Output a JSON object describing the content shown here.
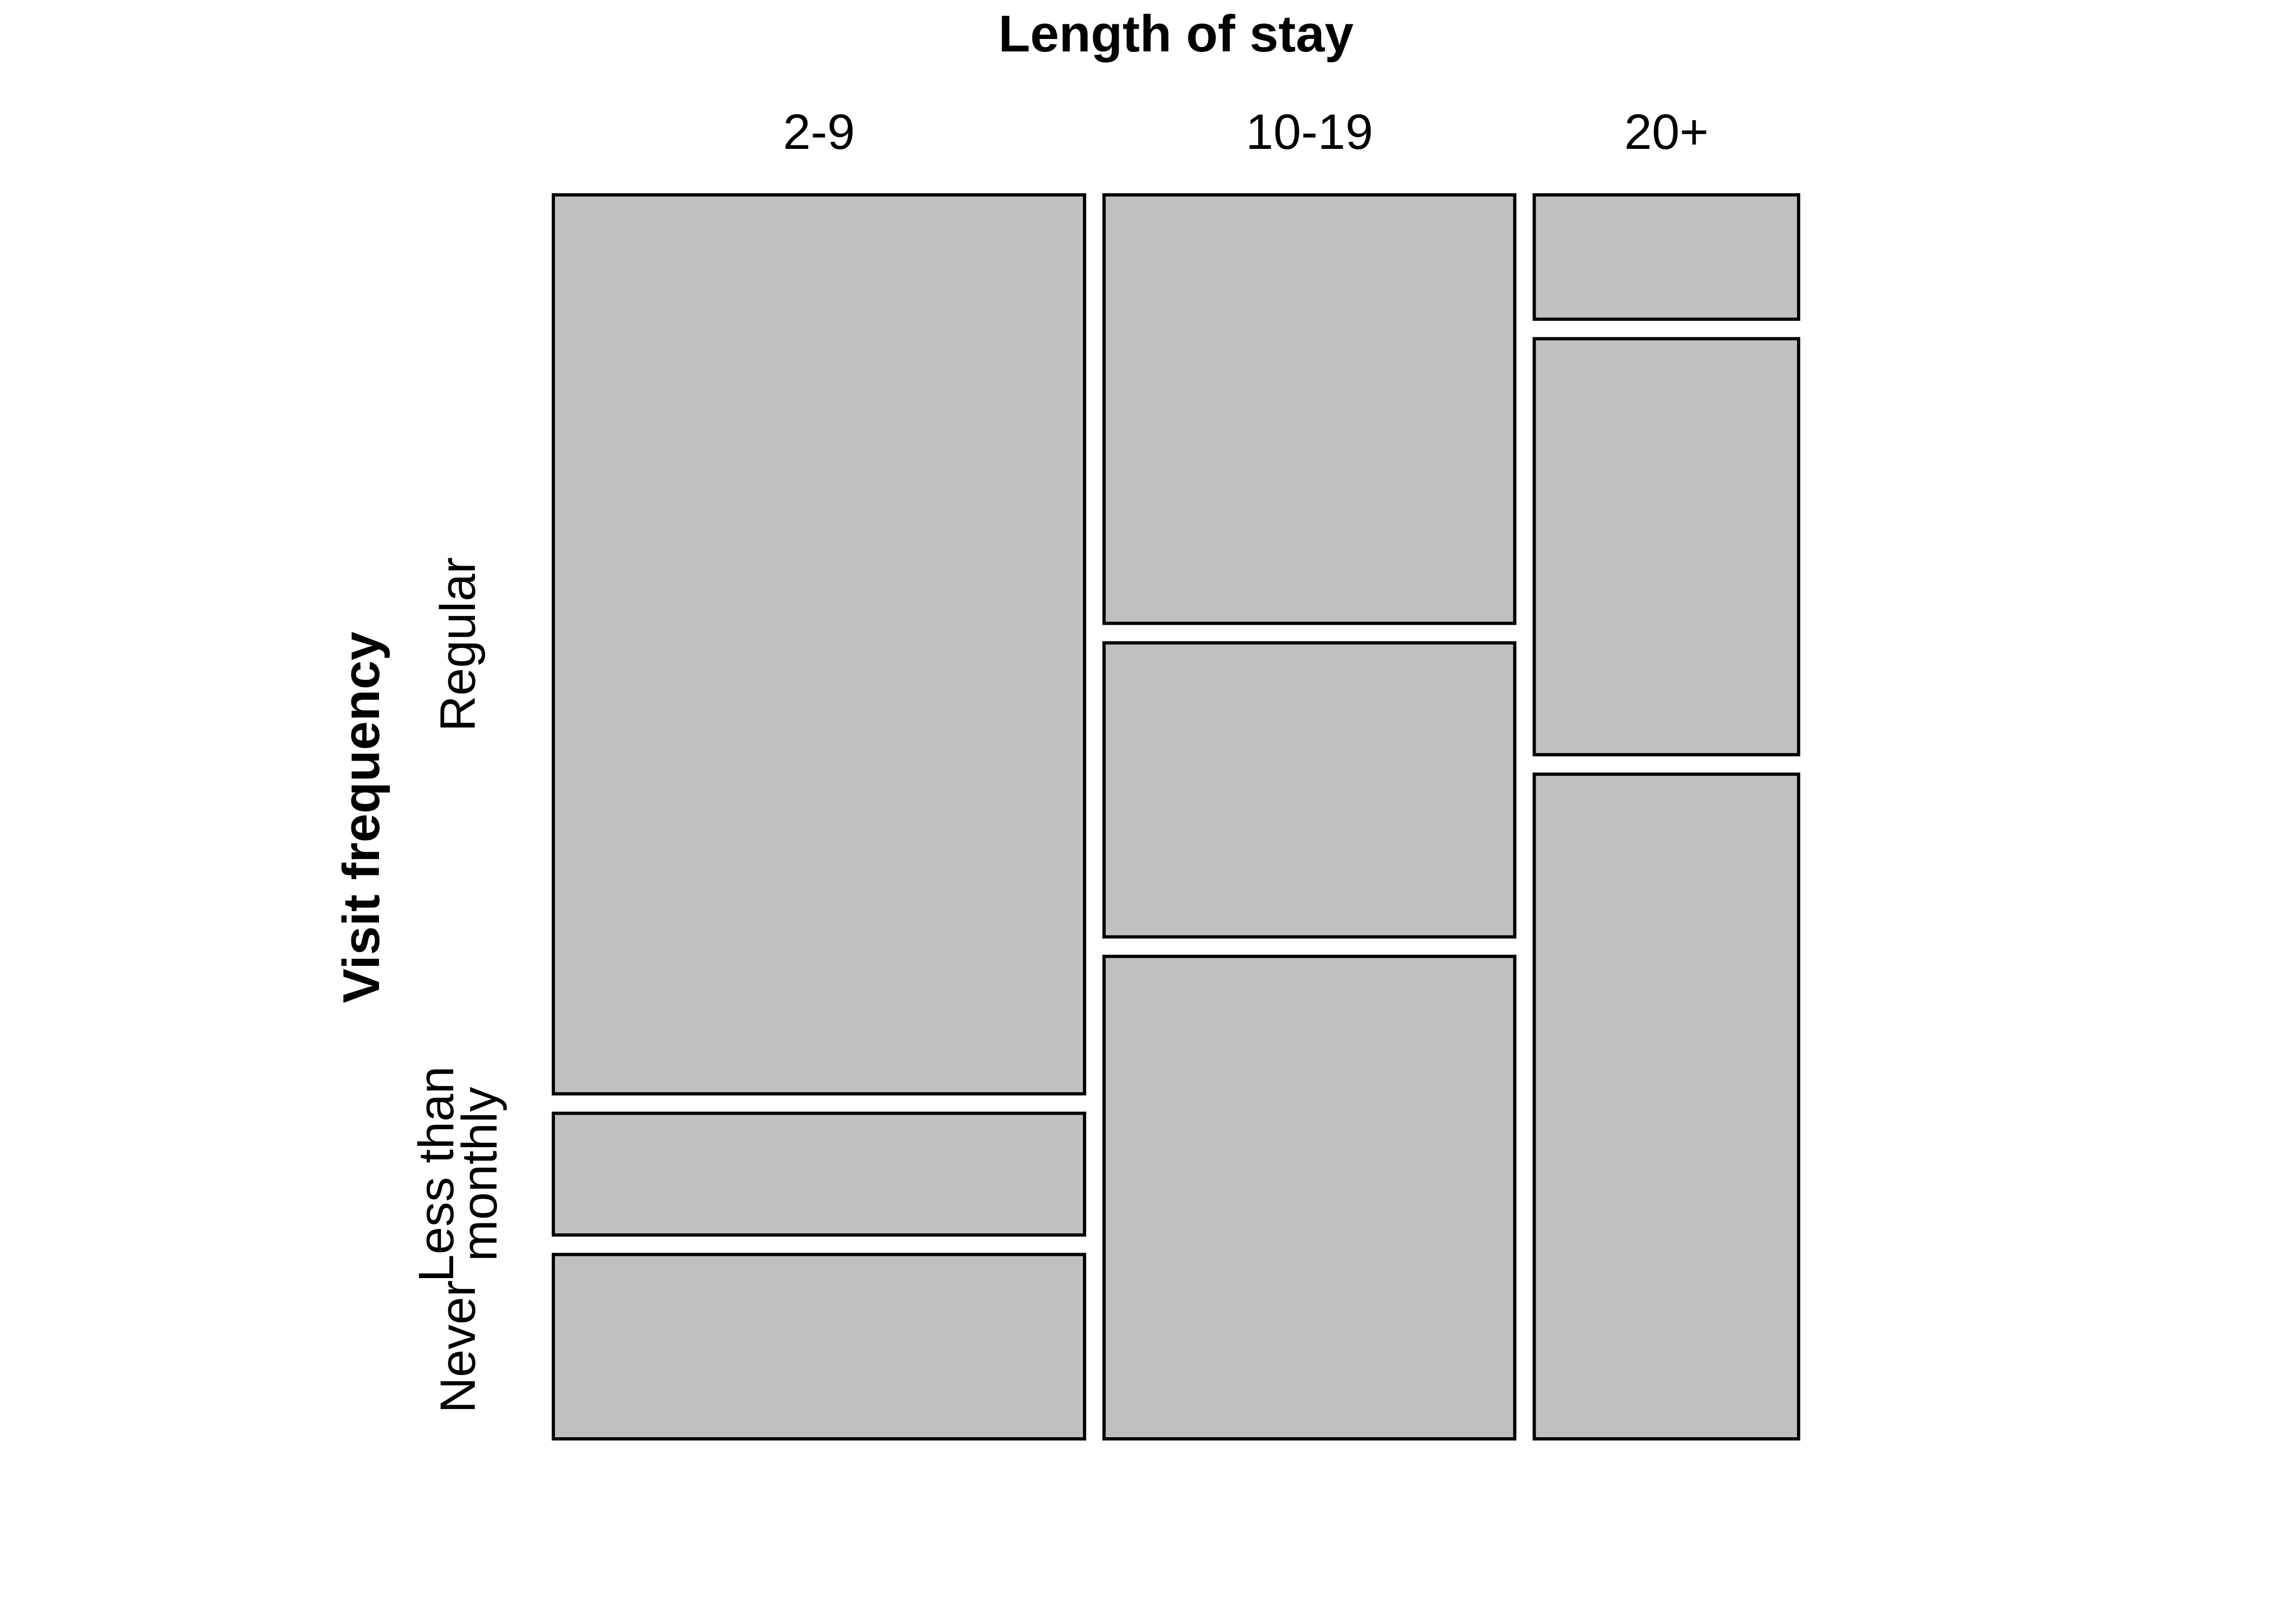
{
  "chart_data": {
    "type": "mosaic",
    "title": "",
    "xlabel": "Length of stay",
    "ylabel": "Visit frequency",
    "columns": [
      "2-9",
      "10-19",
      "20+"
    ],
    "rows": [
      "Never",
      "Less than\nmonthly",
      "Regular"
    ],
    "column_shares": [
      0.432,
      0.334,
      0.215
    ],
    "row_shares_by_column": [
      [
        0.153,
        0.101,
        0.746
      ],
      [
        0.402,
        0.245,
        0.357
      ],
      [
        0.556,
        0.348,
        0.104
      ]
    ],
    "colors": {
      "tile": "#c0c0c0",
      "border": "#000000"
    }
  }
}
